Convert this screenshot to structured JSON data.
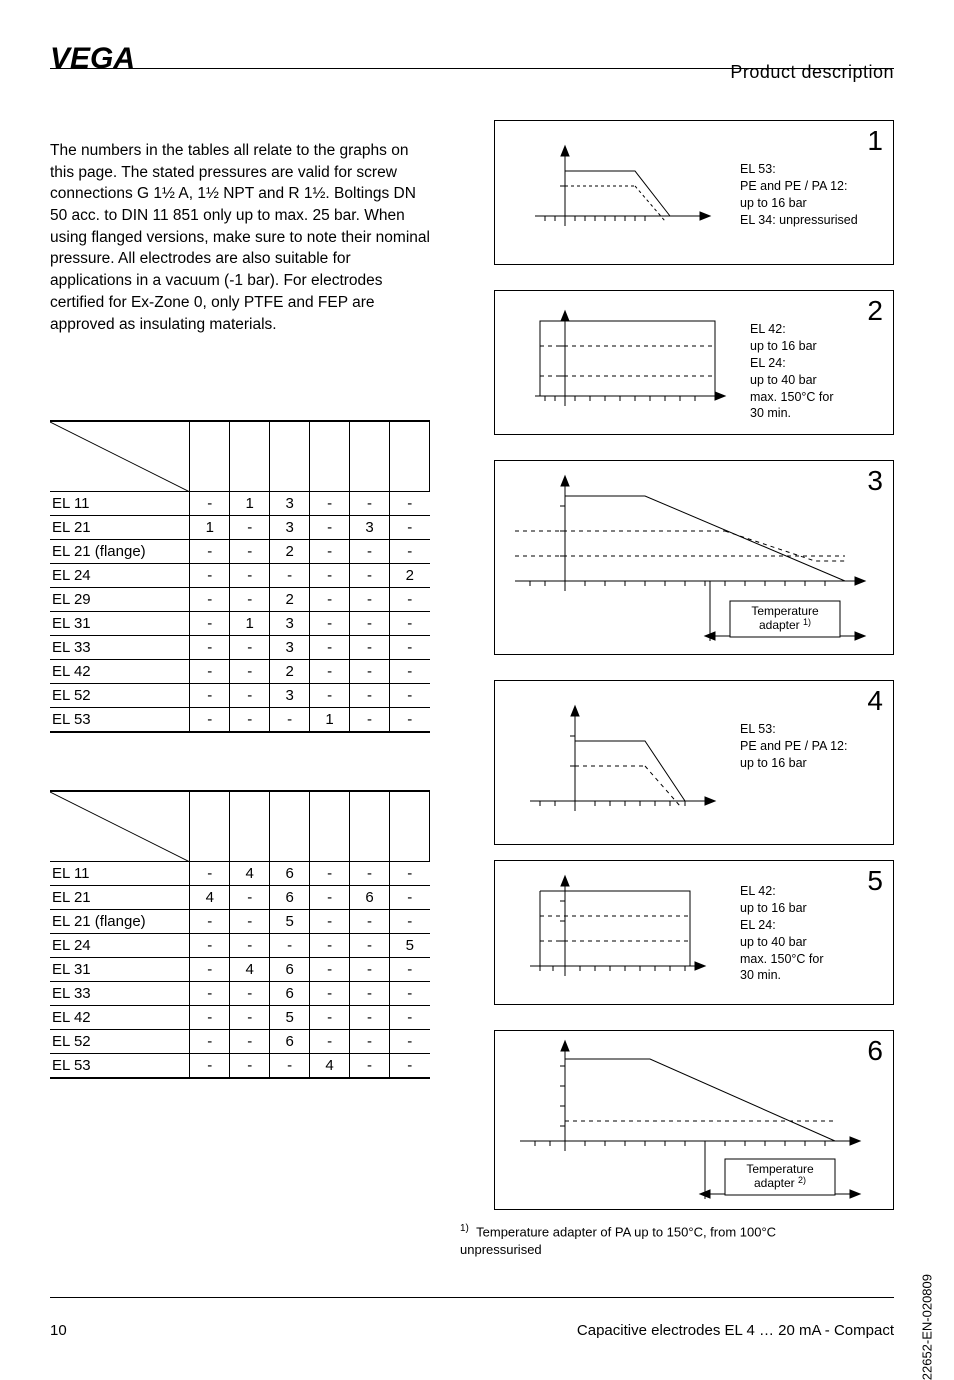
{
  "header": {
    "title": "Product  description",
    "logo_text": "VEGA"
  },
  "body_text": "The numbers in the tables all relate to the graphs on this page. The stated pressures are valid for screw connections G 1½ A, 1½ NPT and R 1½. Boltings DN 50 acc. to DIN 11 851 only up to max. 25 bar. When using flanged versions, make sure to note their nominal pressure. All electrodes are also suitable for applications in a vacuum (-1 bar). For electrodes certified for Ex-Zone 0, only PTFE and FEP are approved as insulating materials.",
  "table1": {
    "rows": [
      {
        "label": "EL 11",
        "c": [
          "-",
          "1",
          "3",
          "-",
          "-",
          "-"
        ]
      },
      {
        "label": "EL 21",
        "c": [
          "1",
          "-",
          "3",
          "-",
          "3",
          "-"
        ]
      },
      {
        "label": "EL 21 (flange)",
        "c": [
          "-",
          "-",
          "2",
          "-",
          "-",
          "-"
        ]
      },
      {
        "label": "EL 24",
        "c": [
          "-",
          "-",
          "-",
          "-",
          "-",
          "2"
        ]
      },
      {
        "label": "EL 29",
        "c": [
          "-",
          "-",
          "2",
          "-",
          "-",
          "-"
        ]
      },
      {
        "label": "EL 31",
        "c": [
          "-",
          "1",
          "3",
          "-",
          "-",
          "-"
        ]
      },
      {
        "label": "EL 33",
        "c": [
          "-",
          "-",
          "3",
          "-",
          "-",
          "-"
        ]
      },
      {
        "label": "EL 42",
        "c": [
          "-",
          "-",
          "2",
          "-",
          "-",
          "-"
        ]
      },
      {
        "label": "EL 52",
        "c": [
          "-",
          "-",
          "3",
          "-",
          "-",
          "-"
        ]
      },
      {
        "label": "EL 53",
        "c": [
          "-",
          "-",
          "-",
          "1",
          "-",
          "-"
        ]
      }
    ]
  },
  "table2": {
    "rows": [
      {
        "label": "EL 11",
        "c": [
          "-",
          "4",
          "6",
          "-",
          "-",
          "-"
        ]
      },
      {
        "label": "EL 21",
        "c": [
          "4",
          "-",
          "6",
          "-",
          "6",
          "-"
        ]
      },
      {
        "label": "EL 21 (flange)",
        "c": [
          "-",
          "-",
          "5",
          "-",
          "-",
          "-"
        ]
      },
      {
        "label": "EL 24",
        "c": [
          "-",
          "-",
          "-",
          "-",
          "-",
          "5"
        ]
      },
      {
        "label": "EL 31",
        "c": [
          "-",
          "4",
          "6",
          "-",
          "-",
          "-"
        ]
      },
      {
        "label": "EL 33",
        "c": [
          "-",
          "-",
          "6",
          "-",
          "-",
          "-"
        ]
      },
      {
        "label": "EL 42",
        "c": [
          "-",
          "-",
          "5",
          "-",
          "-",
          "-"
        ]
      },
      {
        "label": "EL 52",
        "c": [
          "-",
          "-",
          "6",
          "-",
          "-",
          "-"
        ]
      },
      {
        "label": "EL 53",
        "c": [
          "-",
          "-",
          "-",
          "4",
          "-",
          "-"
        ]
      }
    ]
  },
  "panels": {
    "p1": {
      "num": "1",
      "caption": "EL 53:\nPE and PE / PA 12:\nup to 16 bar\nEL 34: unpressurised"
    },
    "p2": {
      "num": "2",
      "caption": "EL 42:\nup to 16 bar\nEL 24:\nup to 40 bar\nmax. 150°C for\n30 min."
    },
    "p3": {
      "num": "3",
      "adapter_label": "Temperature\nadapter ¹⁾"
    },
    "p4": {
      "num": "4",
      "caption": "EL 53:\nPE and PE / PA 12:\nup to 16 bar"
    },
    "p5": {
      "num": "5",
      "caption": "EL 42:\nup to 16 bar\nEL 24:\nup to 40 bar\nmax. 150°C for\n30 min."
    },
    "p6": {
      "num": "6",
      "adapter_label": "Temperature\nadapter ²⁾"
    }
  },
  "footnote": {
    "marker": "1)",
    "text": "Temperature adapter of PA up to 150°C, from 100°C unpressurised"
  },
  "footer": {
    "page": "10",
    "text": "Capacitive electrodes EL 4 … 20 mA - Compact"
  },
  "side_code": "22652-EN-020809",
  "graph_style": {
    "axis_color": "#000000",
    "dash": "3,3",
    "tick_len": 5,
    "line_width": 1,
    "font_size": 12
  }
}
